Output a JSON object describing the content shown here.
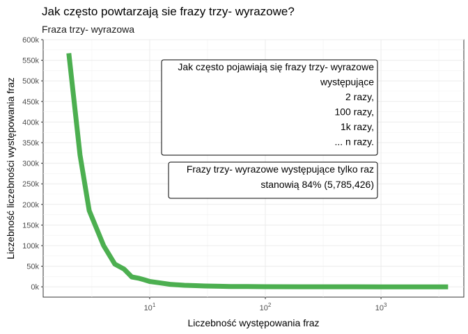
{
  "chart_data": {
    "type": "line",
    "title": "Jak często powtarzają sie frazy trzy- wyrazowe?",
    "subtitle": "Fraza trzy- wyrazowa",
    "xlabel": "Liczebność występowania fraz",
    "ylabel": "Liczebność liczebności występowania fraz",
    "x_scale": "log10",
    "xlim": [
      1.2,
      5200
    ],
    "ylim": [
      -25000,
      600000
    ],
    "x_ticks": [
      10,
      100,
      1000
    ],
    "x_tick_labels": [
      {
        "base": "10",
        "exp": "1"
      },
      {
        "base": "10",
        "exp": "2"
      },
      {
        "base": "10",
        "exp": "3"
      }
    ],
    "y_ticks": [
      0,
      50000,
      100000,
      150000,
      200000,
      250000,
      300000,
      350000,
      400000,
      450000,
      500000,
      550000,
      600000
    ],
    "y_tick_labels": [
      "0k",
      "50k",
      "100k",
      "150k",
      "200k",
      "250k",
      "300k",
      "350k",
      "400k",
      "450k",
      "500k",
      "550k",
      "600k"
    ],
    "grid": true,
    "line_color": "#4CAF50",
    "series": [
      {
        "x": [
          2,
          2.5,
          3,
          4,
          5,
          6,
          7,
          8,
          9,
          10,
          12,
          15,
          18,
          20,
          25,
          30,
          40,
          50,
          70,
          100,
          200,
          500,
          1000,
          2000,
          3800
        ],
        "y": [
          567000,
          320000,
          185000,
          100000,
          55000,
          43000,
          24000,
          21000,
          17000,
          13000,
          10000,
          6000,
          4500,
          3800,
          2800,
          2000,
          1300,
          900,
          600,
          400,
          200,
          100,
          50,
          20,
          5
        ]
      }
    ],
    "annotations": [
      {
        "lines": [
          "Jak często pojawiają się frazy trzy- wyrazowe",
          "występujące",
          "2 razy,",
          "100 razy,",
          "1k razy,",
          "... n razy."
        ]
      },
      {
        "lines": [
          "Frazy trzy- wyrazowe występujące tylko raz",
          "stanowią 84% (5,785,426)"
        ]
      }
    ]
  }
}
